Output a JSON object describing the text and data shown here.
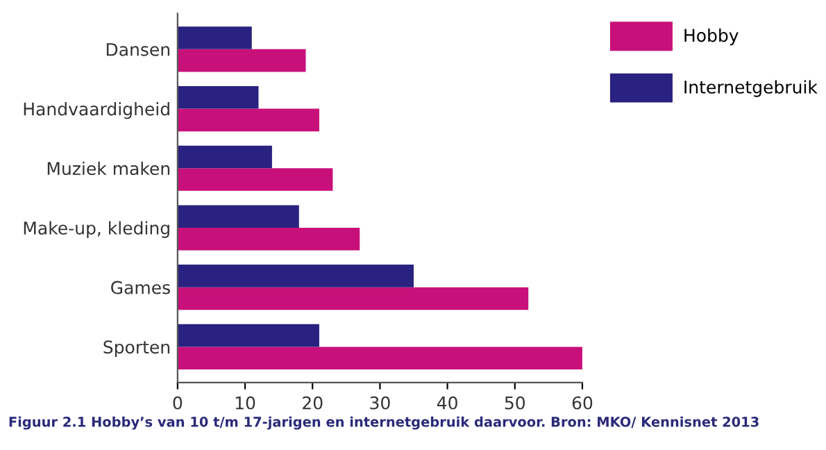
{
  "chart_data": {
    "type": "bar",
    "orientation": "horizontal",
    "categories": [
      "Dansen",
      "Handvaardigheid",
      "Muziek maken",
      "Make-up, kleding",
      "Games",
      "Sporten"
    ],
    "series": [
      {
        "name": "Hobby",
        "color": "#c8107a",
        "values": [
          19,
          21,
          23,
          27,
          52,
          60
        ]
      },
      {
        "name": "Internetgebruik",
        "color": "#2a2280",
        "values": [
          11,
          12,
          14,
          18,
          35,
          21
        ]
      }
    ],
    "xlim": [
      0,
      60
    ],
    "xticks": [
      0,
      10,
      20,
      30,
      40,
      50,
      60
    ],
    "grid": false,
    "legend": "top right",
    "annotations": [
      "Figuur 2.1 Hobby’s van 10 t/m 17-jarigen en internetgebruik daarvoor. Bron: MKO/ Kennisnet 2013"
    ]
  }
}
